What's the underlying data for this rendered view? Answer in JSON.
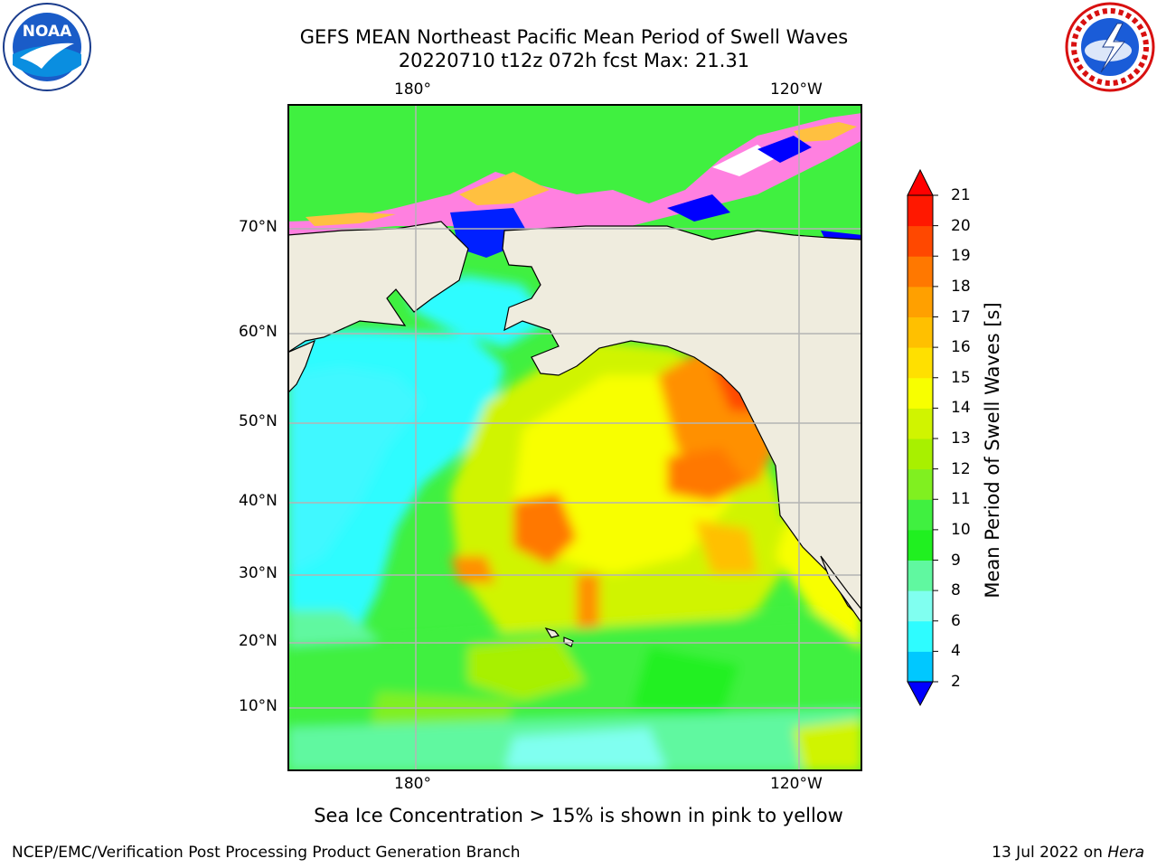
{
  "header": {
    "title_line1": "GEFS MEAN Northeast Pacific Mean Period of Swell Waves",
    "title_line2": "20220710 t12z 072h fcst   Max: 21.31"
  },
  "logos": {
    "left": {
      "text": "NOAA",
      "icon": "noaa-logo"
    },
    "right": {
      "icon": "national-weather-service-logo"
    }
  },
  "axes": {
    "lon_labels": [
      "180°",
      "120°W"
    ],
    "lat_labels": [
      "70°N",
      "60°N",
      "50°N",
      "40°N",
      "30°N",
      "20°N",
      "10°N"
    ]
  },
  "colorbar": {
    "label": "Mean Period of Swell Waves [s]",
    "ticks": [
      "2",
      "4",
      "6",
      "8",
      "9",
      "10",
      "11",
      "12",
      "13",
      "14",
      "15",
      "16",
      "17",
      "18",
      "19",
      "20",
      "21"
    ],
    "colors": [
      "#0040ff",
      "#00c8ff",
      "#2efcff",
      "#80fff0",
      "#60f8a0",
      "#20f020",
      "#40f040",
      "#80f020",
      "#a8f000",
      "#d0f400",
      "#f8ff00",
      "#ffe000",
      "#ffc000",
      "#ffa000",
      "#ff7800",
      "#ff4800",
      "#ff1800"
    ],
    "under_color": "#0000ff",
    "over_color": "#ff0000"
  },
  "map": {
    "land_color": "#efecde",
    "ocean_base_color": "#40f040",
    "grid_color": "#b4b4b4"
  },
  "notes": {
    "sea_ice": "Sea Ice Concentration > 15% is shown in pink to yellow"
  },
  "footer": {
    "left": "NCEP/EMC/Verification Post Processing Product Generation Branch",
    "right_date": "13 Jul 2022 on ",
    "right_machine": "Hera"
  }
}
